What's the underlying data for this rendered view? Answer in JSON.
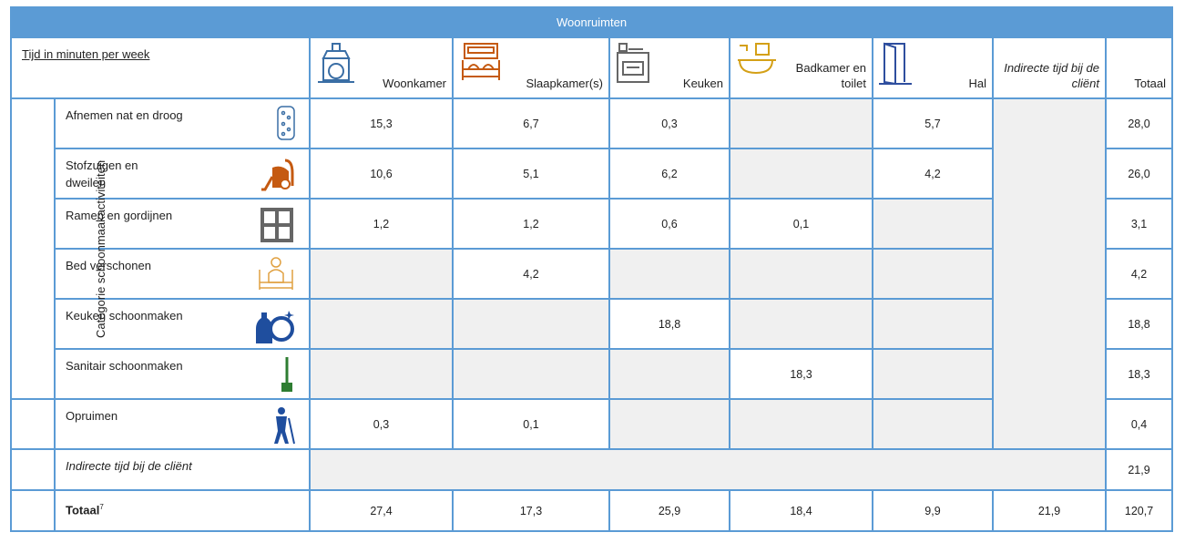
{
  "title": "Woonruimten",
  "corner_label": "Tijd in minuten per week",
  "category_label": "Categorie schoonmaakactiviteiten",
  "columns": [
    {
      "label": "Woonkamer",
      "icon": "fireplace-icon",
      "color": "#3a6ea5"
    },
    {
      "label": "Slaapkamer(s)",
      "icon": "bed-icon",
      "color": "#c55a11"
    },
    {
      "label": "Keuken",
      "icon": "stove-icon",
      "color": "#666666"
    },
    {
      "label": "Badkamer en toilet",
      "icon": "bathtub-icon",
      "color": "#d4a017"
    },
    {
      "label": "Hal",
      "icon": "door-icon",
      "color": "#2e4e9e"
    },
    {
      "label": "Indirecte tijd bij de cliënt",
      "icon": "",
      "color": ""
    },
    {
      "label": "Totaal",
      "icon": "",
      "color": ""
    }
  ],
  "rows": [
    {
      "label": "Afnemen nat en droog",
      "icon": "sponge-icon",
      "values": [
        "15,3",
        "6,7",
        "0,3",
        "",
        "5,7"
      ],
      "total": "28,0"
    },
    {
      "label": "Stofzuigen en dweilen",
      "icon": "vacuum-icon",
      "values": [
        "10,6",
        "5,1",
        "6,2",
        "",
        "4,2"
      ],
      "total": "26,0"
    },
    {
      "label": "Ramen en gordijnen",
      "icon": "window-icon",
      "values": [
        "1,2",
        "1,2",
        "0,6",
        "0,1",
        ""
      ],
      "total": "3,1"
    },
    {
      "label": "Bed verschonen",
      "icon": "bed-making-icon",
      "values": [
        "",
        "4,2",
        "",
        "",
        ""
      ],
      "total": "4,2"
    },
    {
      "label": "Keuken schoonmaken",
      "icon": "dish-soap-icon",
      "values": [
        "",
        "",
        "18,8",
        "",
        ""
      ],
      "total": "18,8"
    },
    {
      "label": "Sanitair schoonmaken",
      "icon": "toilet-brush-icon",
      "values": [
        "",
        "",
        "",
        "18,3",
        ""
      ],
      "total": "18,3"
    },
    {
      "label": "Opruimen",
      "icon": "person-tidying-icon",
      "values": [
        "0,3",
        "0,1",
        "",
        "",
        ""
      ],
      "total": "0,4"
    }
  ],
  "indirect_row": {
    "label": "Indirecte tijd bij de cliënt",
    "total": "21,9"
  },
  "total_row": {
    "label": "Totaal",
    "footnote": "7",
    "values": [
      "27,4",
      "17,3",
      "25,9",
      "18,4",
      "9,9",
      "21,9"
    ],
    "total": "120,7"
  },
  "colors": {
    "border": "#5b9bd5",
    "header_bg": "#5b9bd5",
    "empty_cell": "#f0f0f0"
  }
}
